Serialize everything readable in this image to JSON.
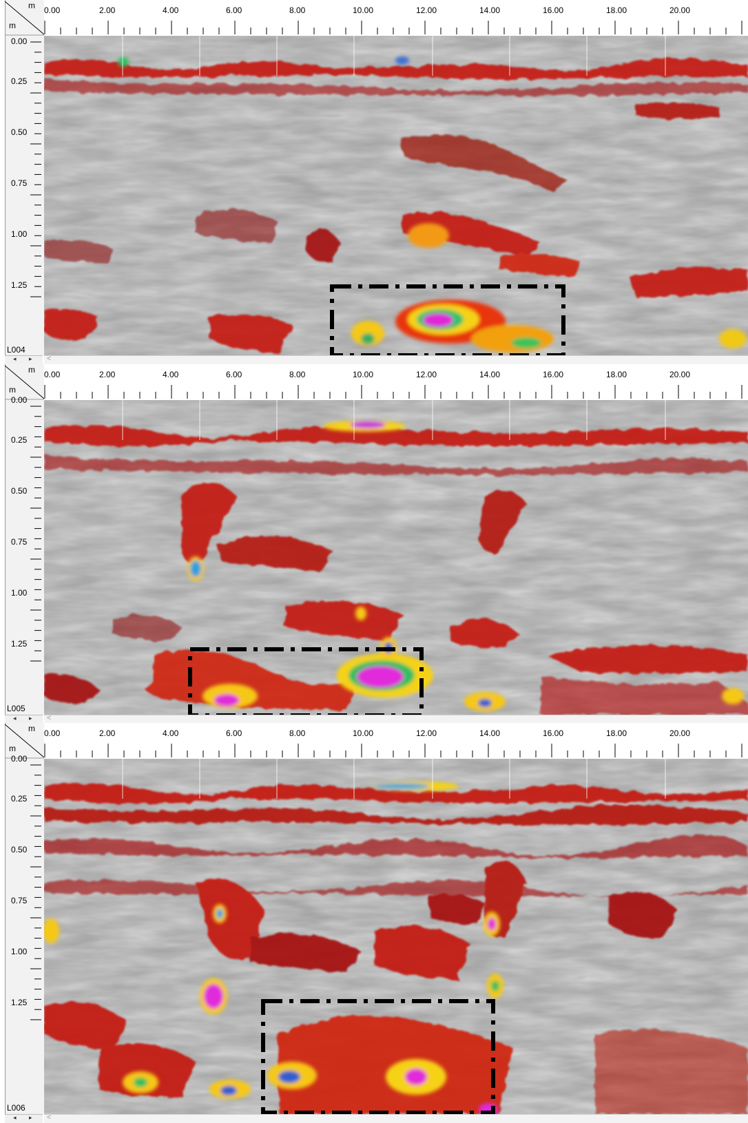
{
  "units": {
    "top": "m",
    "left": "m"
  },
  "x_ticks": [
    "0.00",
    "2.00",
    "4.00",
    "6.00",
    "8.00",
    "10.00",
    "12.00",
    "14.00",
    "16.00",
    "18.00",
    "20.00"
  ],
  "depth_ticks": [
    "0.00",
    "0.25",
    "0.50",
    "0.75",
    "1.00",
    "1.25"
  ],
  "scroll": {
    "left": "◂",
    "right": "▸",
    "h_left": "<"
  },
  "panels": [
    {
      "line": "L004"
    },
    {
      "line": "L005"
    },
    {
      "line": "L006"
    }
  ]
}
